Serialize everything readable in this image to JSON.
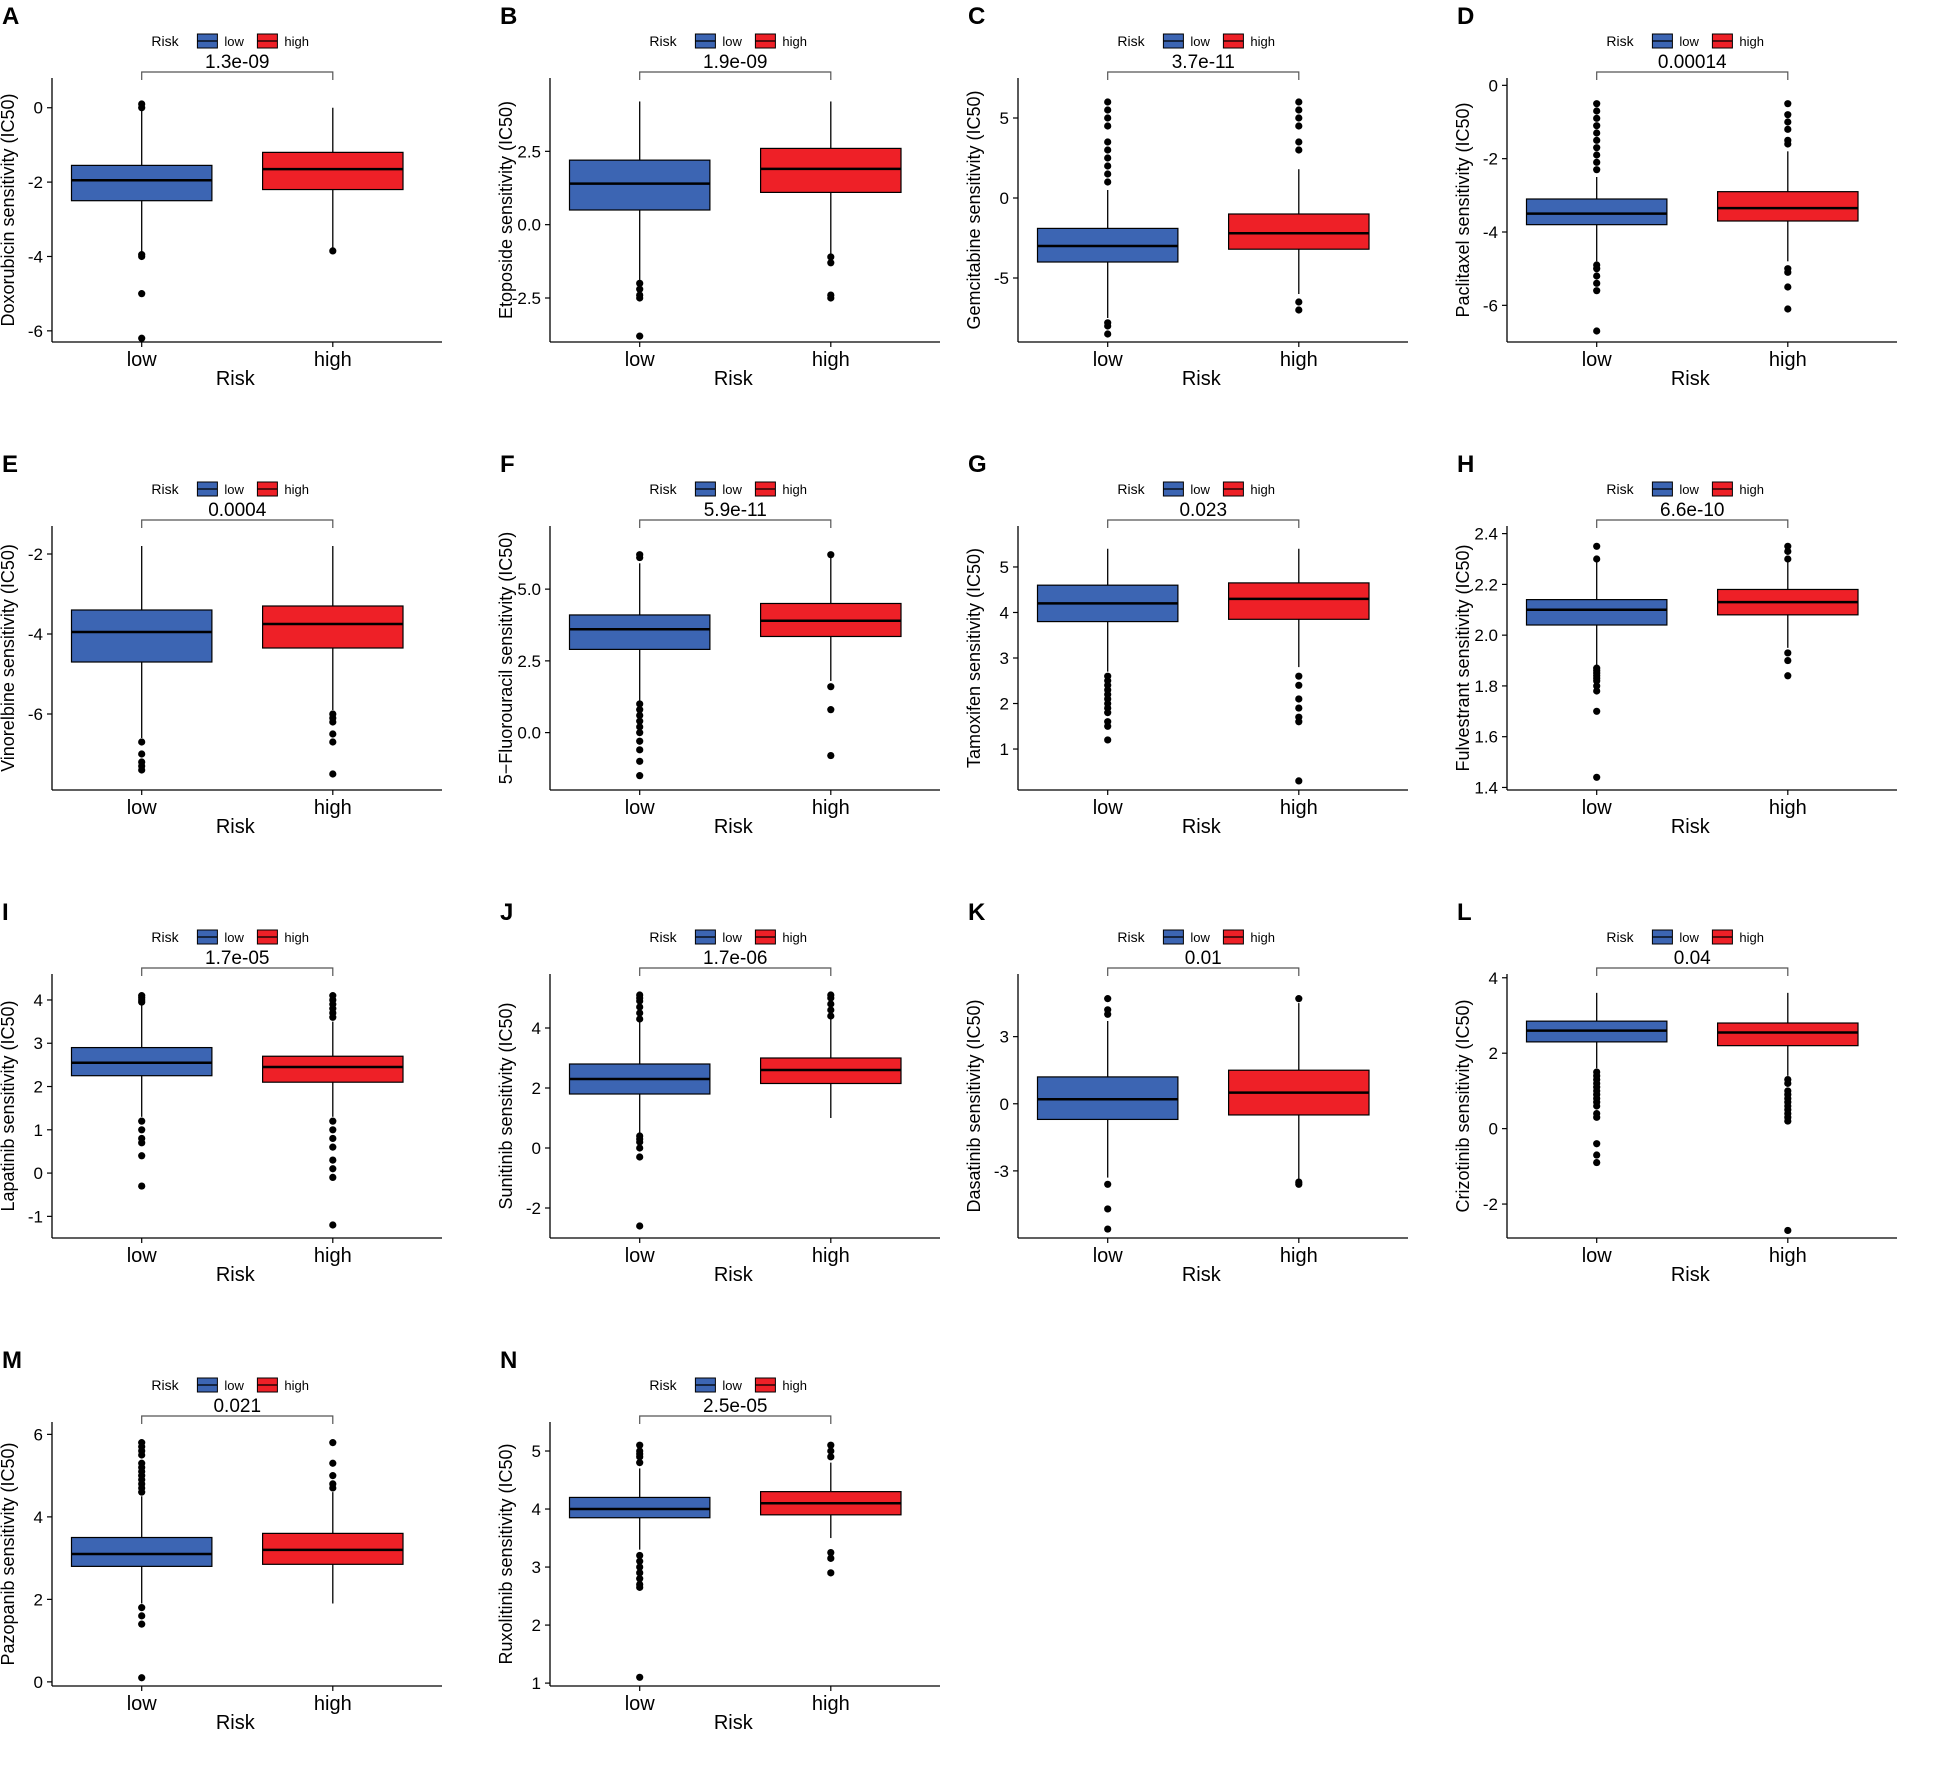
{
  "legend": {
    "title": "Risk",
    "low_label": "low",
    "high_label": "high"
  },
  "colors": {
    "low": "#3C65B3",
    "high": "#EE2027",
    "line": "#000000",
    "outlier": "#000000"
  },
  "chart_data": [
    {
      "type": "box",
      "panel": "A",
      "ylabel": "Doxorubicin sensitivity (IC50)",
      "xlabel": "Risk",
      "categories": [
        "low",
        "high"
      ],
      "pvalue": "1.3e-09",
      "ylim": [
        -6.3,
        0.8
      ],
      "yticks": [
        0,
        -2,
        -4,
        -6
      ],
      "boxes": [
        {
          "group": "low",
          "whisker_low": -4.0,
          "q1": -2.5,
          "median": -1.95,
          "q3": -1.55,
          "whisker_high": 0.0,
          "outliers": [
            0.1,
            0.0,
            -3.95,
            -4.0,
            -5.0,
            -6.2
          ]
        },
        {
          "group": "high",
          "whisker_low": -3.85,
          "q1": -2.2,
          "median": -1.65,
          "q3": -1.2,
          "whisker_high": 0.0,
          "outliers": [
            -3.85
          ]
        }
      ]
    },
    {
      "type": "box",
      "panel": "B",
      "ylabel": "Etoposide sensitivity (IC50)",
      "xlabel": "Risk",
      "categories": [
        "low",
        "high"
      ],
      "pvalue": "1.9e-09",
      "ylim": [
        -4.0,
        5.0
      ],
      "yticks": [
        2.5,
        0.0,
        -2.5
      ],
      "boxes": [
        {
          "group": "low",
          "whisker_low": -1.9,
          "q1": 0.5,
          "median": 1.4,
          "q3": 2.2,
          "whisker_high": 4.2,
          "outliers": [
            -2.0,
            -2.2,
            -2.4,
            -2.5,
            -3.8
          ]
        },
        {
          "group": "high",
          "whisker_low": -1.0,
          "q1": 1.1,
          "median": 1.9,
          "q3": 2.6,
          "whisker_high": 4.2,
          "outliers": [
            -1.1,
            -1.3,
            -2.4,
            -2.5
          ]
        }
      ]
    },
    {
      "type": "box",
      "panel": "C",
      "ylabel": "Gemcitabine sensitivity (IC50)",
      "xlabel": "Risk",
      "categories": [
        "low",
        "high"
      ],
      "pvalue": "3.7e-11",
      "ylim": [
        -9.0,
        7.5
      ],
      "yticks": [
        5,
        0,
        -5
      ],
      "boxes": [
        {
          "group": "low",
          "whisker_low": -7.5,
          "q1": -4.0,
          "median": -3.0,
          "q3": -1.9,
          "whisker_high": 0.5,
          "outliers": [
            6.0,
            5.5,
            5.0,
            4.5,
            3.5,
            3.0,
            2.5,
            2.0,
            1.5,
            1.0,
            -7.8,
            -8.0,
            -8.5
          ]
        },
        {
          "group": "high",
          "whisker_low": -6.0,
          "q1": -3.2,
          "median": -2.2,
          "q3": -1.0,
          "whisker_high": 1.8,
          "outliers": [
            6.0,
            5.5,
            5.0,
            4.5,
            3.5,
            3.0,
            -6.5,
            -7.0
          ]
        }
      ]
    },
    {
      "type": "box",
      "panel": "D",
      "ylabel": "Paclitaxel sensitivity (IC50)",
      "xlabel": "Risk",
      "categories": [
        "low",
        "high"
      ],
      "pvalue": "0.00014",
      "ylim": [
        -7.0,
        0.2
      ],
      "yticks": [
        0,
        -2,
        -4,
        -6
      ],
      "boxes": [
        {
          "group": "low",
          "whisker_low": -4.8,
          "q1": -3.8,
          "median": -3.5,
          "q3": -3.1,
          "whisker_high": -2.5,
          "outliers": [
            -0.5,
            -0.7,
            -0.9,
            -1.1,
            -1.3,
            -1.5,
            -1.7,
            -1.9,
            -2.1,
            -2.3,
            -4.9,
            -5.0,
            -5.2,
            -5.4,
            -5.6,
            -6.7
          ]
        },
        {
          "group": "high",
          "whisker_low": -4.8,
          "q1": -3.7,
          "median": -3.35,
          "q3": -2.9,
          "whisker_high": -1.8,
          "outliers": [
            -0.5,
            -0.8,
            -1.0,
            -1.2,
            -1.5,
            -1.6,
            -5.0,
            -5.1,
            -5.5,
            -6.1
          ]
        }
      ]
    },
    {
      "type": "box",
      "panel": "E",
      "ylabel": "Vinorelbine sensitivity (IC50)",
      "xlabel": "Risk",
      "categories": [
        "low",
        "high"
      ],
      "pvalue": "0.0004",
      "ylim": [
        -7.9,
        -1.3
      ],
      "yticks": [
        -2,
        -4,
        -6
      ],
      "boxes": [
        {
          "group": "low",
          "whisker_low": -6.6,
          "q1": -4.7,
          "median": -3.95,
          "q3": -3.4,
          "whisker_high": -1.8,
          "outliers": [
            -6.7,
            -7.0,
            -7.2,
            -7.3,
            -7.4
          ]
        },
        {
          "group": "high",
          "whisker_low": -5.9,
          "q1": -4.35,
          "median": -3.75,
          "q3": -3.3,
          "whisker_high": -1.8,
          "outliers": [
            -6.0,
            -6.1,
            -6.2,
            -6.5,
            -6.7,
            -7.5
          ]
        }
      ]
    },
    {
      "type": "box",
      "panel": "F",
      "ylabel": "5−Fluorouracil sensitivity (IC50)",
      "xlabel": "Risk",
      "categories": [
        "low",
        "high"
      ],
      "pvalue": "5.9e-11",
      "ylim": [
        -2.0,
        7.2
      ],
      "yticks": [
        5.0,
        2.5,
        0.0
      ],
      "boxes": [
        {
          "group": "low",
          "whisker_low": 1.1,
          "q1": 2.9,
          "median": 3.6,
          "q3": 4.1,
          "whisker_high": 5.9,
          "outliers": [
            6.1,
            6.2,
            1.0,
            0.8,
            0.6,
            0.4,
            0.2,
            0.0,
            -0.3,
            -0.6,
            -1.0,
            -1.5
          ]
        },
        {
          "group": "high",
          "whisker_low": 1.8,
          "q1": 3.35,
          "median": 3.9,
          "q3": 4.5,
          "whisker_high": 6.2,
          "outliers": [
            6.2,
            1.6,
            0.8,
            -0.8
          ]
        }
      ]
    },
    {
      "type": "box",
      "panel": "G",
      "ylabel": "Tamoxifen sensitivity (IC50)",
      "xlabel": "Risk",
      "categories": [
        "low",
        "high"
      ],
      "pvalue": "0.023",
      "ylim": [
        0.1,
        5.9
      ],
      "yticks": [
        5,
        4,
        3,
        2,
        1
      ],
      "boxes": [
        {
          "group": "low",
          "whisker_low": 2.7,
          "q1": 3.8,
          "median": 4.2,
          "q3": 4.6,
          "whisker_high": 5.4,
          "outliers": [
            2.6,
            2.5,
            2.4,
            2.3,
            2.2,
            2.1,
            2.0,
            1.9,
            1.8,
            1.6,
            1.5,
            1.2
          ]
        },
        {
          "group": "high",
          "whisker_low": 2.8,
          "q1": 3.85,
          "median": 4.3,
          "q3": 4.65,
          "whisker_high": 5.4,
          "outliers": [
            2.6,
            2.4,
            2.1,
            1.9,
            1.7,
            1.6,
            0.3
          ]
        }
      ]
    },
    {
      "type": "box",
      "panel": "H",
      "ylabel": "Fulvestrant sensitivity (IC50)",
      "xlabel": "Risk",
      "categories": [
        "low",
        "high"
      ],
      "pvalue": "6.6e-10",
      "ylim": [
        1.39,
        2.43
      ],
      "yticks": [
        2.4,
        2.2,
        2.0,
        1.8,
        1.6,
        1.4
      ],
      "boxes": [
        {
          "group": "low",
          "whisker_low": 1.88,
          "q1": 2.04,
          "median": 2.1,
          "q3": 2.14,
          "whisker_high": 2.29,
          "outliers": [
            2.35,
            2.3,
            1.87,
            1.86,
            1.85,
            1.84,
            1.83,
            1.82,
            1.8,
            1.78,
            1.7,
            1.44
          ]
        },
        {
          "group": "high",
          "whisker_low": 1.95,
          "q1": 2.08,
          "median": 2.13,
          "q3": 2.18,
          "whisker_high": 2.3,
          "outliers": [
            2.35,
            2.33,
            2.3,
            1.93,
            1.9,
            1.84
          ]
        }
      ]
    },
    {
      "type": "box",
      "panel": "I",
      "ylabel": "Lapatinib sensitivity (IC50)",
      "xlabel": "Risk",
      "categories": [
        "low",
        "high"
      ],
      "pvalue": "1.7e-05",
      "ylim": [
        -1.5,
        4.6
      ],
      "yticks": [
        4,
        3,
        2,
        1,
        0,
        -1
      ],
      "boxes": [
        {
          "group": "low",
          "whisker_low": 1.3,
          "q1": 2.25,
          "median": 2.55,
          "q3": 2.9,
          "whisker_high": 3.9,
          "outliers": [
            4.1,
            4.05,
            4.0,
            3.95,
            1.2,
            1.0,
            0.8,
            0.7,
            0.4,
            -0.3
          ]
        },
        {
          "group": "high",
          "whisker_low": 1.3,
          "q1": 2.1,
          "median": 2.45,
          "q3": 2.7,
          "whisker_high": 3.5,
          "outliers": [
            4.1,
            4.0,
            3.9,
            3.8,
            3.7,
            3.6,
            1.2,
            1.0,
            0.8,
            0.6,
            0.3,
            0.1,
            -0.1,
            -1.2
          ]
        }
      ]
    },
    {
      "type": "box",
      "panel": "J",
      "ylabel": "Sunitinib sensitivity (IC50)",
      "xlabel": "Risk",
      "categories": [
        "low",
        "high"
      ],
      "pvalue": "1.7e-06",
      "ylim": [
        -3.0,
        5.8
      ],
      "yticks": [
        4,
        2,
        0,
        -2
      ],
      "boxes": [
        {
          "group": "low",
          "whisker_low": 0.4,
          "q1": 1.8,
          "median": 2.3,
          "q3": 2.8,
          "whisker_high": 4.2,
          "outliers": [
            5.1,
            5.0,
            4.9,
            4.7,
            4.5,
            4.3,
            0.4,
            0.3,
            0.2,
            0.0,
            -0.3,
            -2.6
          ]
        },
        {
          "group": "high",
          "whisker_low": 1.0,
          "q1": 2.15,
          "median": 2.6,
          "q3": 3.0,
          "whisker_high": 4.5,
          "outliers": [
            5.1,
            5.0,
            4.8,
            4.6,
            4.4
          ]
        }
      ]
    },
    {
      "type": "box",
      "panel": "K",
      "ylabel": "Dasatinib sensitivity (IC50)",
      "xlabel": "Risk",
      "categories": [
        "low",
        "high"
      ],
      "pvalue": "0.01",
      "ylim": [
        -6.0,
        5.8
      ],
      "yticks": [
        3,
        0,
        -3
      ],
      "boxes": [
        {
          "group": "low",
          "whisker_low": -3.3,
          "q1": -0.7,
          "median": 0.2,
          "q3": 1.2,
          "whisker_high": 3.7,
          "outliers": [
            4.7,
            4.2,
            4.0,
            -3.6,
            -4.7,
            -5.6
          ]
        },
        {
          "group": "high",
          "whisker_low": -3.5,
          "q1": -0.5,
          "median": 0.5,
          "q3": 1.5,
          "whisker_high": 4.5,
          "outliers": [
            4.7,
            -3.5,
            -3.6
          ]
        }
      ]
    },
    {
      "type": "box",
      "panel": "L",
      "ylabel": "Crizotinib sensitivity (IC50)",
      "xlabel": "Risk",
      "categories": [
        "low",
        "high"
      ],
      "pvalue": "0.04",
      "ylim": [
        -2.9,
        4.1
      ],
      "yticks": [
        4,
        2,
        0,
        -2
      ],
      "boxes": [
        {
          "group": "low",
          "whisker_low": 1.6,
          "q1": 2.3,
          "median": 2.6,
          "q3": 2.85,
          "whisker_high": 3.6,
          "outliers": [
            1.5,
            1.4,
            1.3,
            1.2,
            1.1,
            1.0,
            0.9,
            0.8,
            0.7,
            0.6,
            0.4,
            0.3,
            -0.4,
            -0.7,
            -0.9
          ]
        },
        {
          "group": "high",
          "whisker_low": 1.4,
          "q1": 2.2,
          "median": 2.55,
          "q3": 2.8,
          "whisker_high": 3.6,
          "outliers": [
            1.3,
            1.2,
            1.0,
            0.9,
            0.8,
            0.7,
            0.6,
            0.5,
            0.4,
            0.3,
            0.2,
            -2.7
          ]
        }
      ]
    },
    {
      "type": "box",
      "panel": "M",
      "ylabel": "Pazopanib sensitivity (IC50)",
      "xlabel": "Risk",
      "categories": [
        "low",
        "high"
      ],
      "pvalue": "0.021",
      "ylim": [
        -0.1,
        6.3
      ],
      "yticks": [
        6,
        4,
        2,
        0
      ],
      "boxes": [
        {
          "group": "low",
          "whisker_low": 1.9,
          "q1": 2.8,
          "median": 3.1,
          "q3": 3.5,
          "whisker_high": 4.5,
          "outliers": [
            5.8,
            5.7,
            5.6,
            5.5,
            5.3,
            5.2,
            5.1,
            5.0,
            4.9,
            4.8,
            4.7,
            4.6,
            1.8,
            1.6,
            1.4,
            0.1
          ]
        },
        {
          "group": "high",
          "whisker_low": 1.9,
          "q1": 2.85,
          "median": 3.2,
          "q3": 3.6,
          "whisker_high": 4.6,
          "outliers": [
            5.8,
            5.3,
            5.0,
            4.8,
            4.7
          ]
        }
      ]
    },
    {
      "type": "box",
      "panel": "N",
      "ylabel": "Ruxolitinib sensitivity (IC50)",
      "xlabel": "Risk",
      "categories": [
        "low",
        "high"
      ],
      "pvalue": "2.5e-05",
      "ylim": [
        0.95,
        5.5
      ],
      "yticks": [
        5,
        4,
        3,
        2,
        1
      ],
      "boxes": [
        {
          "group": "low",
          "whisker_low": 3.3,
          "q1": 3.85,
          "median": 4.0,
          "q3": 4.2,
          "whisker_high": 4.7,
          "outliers": [
            5.1,
            5.0,
            4.95,
            4.9,
            4.8,
            3.2,
            3.1,
            3.0,
            2.9,
            2.8,
            2.7,
            2.65,
            1.1
          ]
        },
        {
          "group": "high",
          "whisker_low": 3.5,
          "q1": 3.9,
          "median": 4.1,
          "q3": 4.3,
          "whisker_high": 4.8,
          "outliers": [
            5.1,
            5.0,
            4.9,
            3.25,
            3.15,
            2.9
          ]
        }
      ]
    }
  ]
}
